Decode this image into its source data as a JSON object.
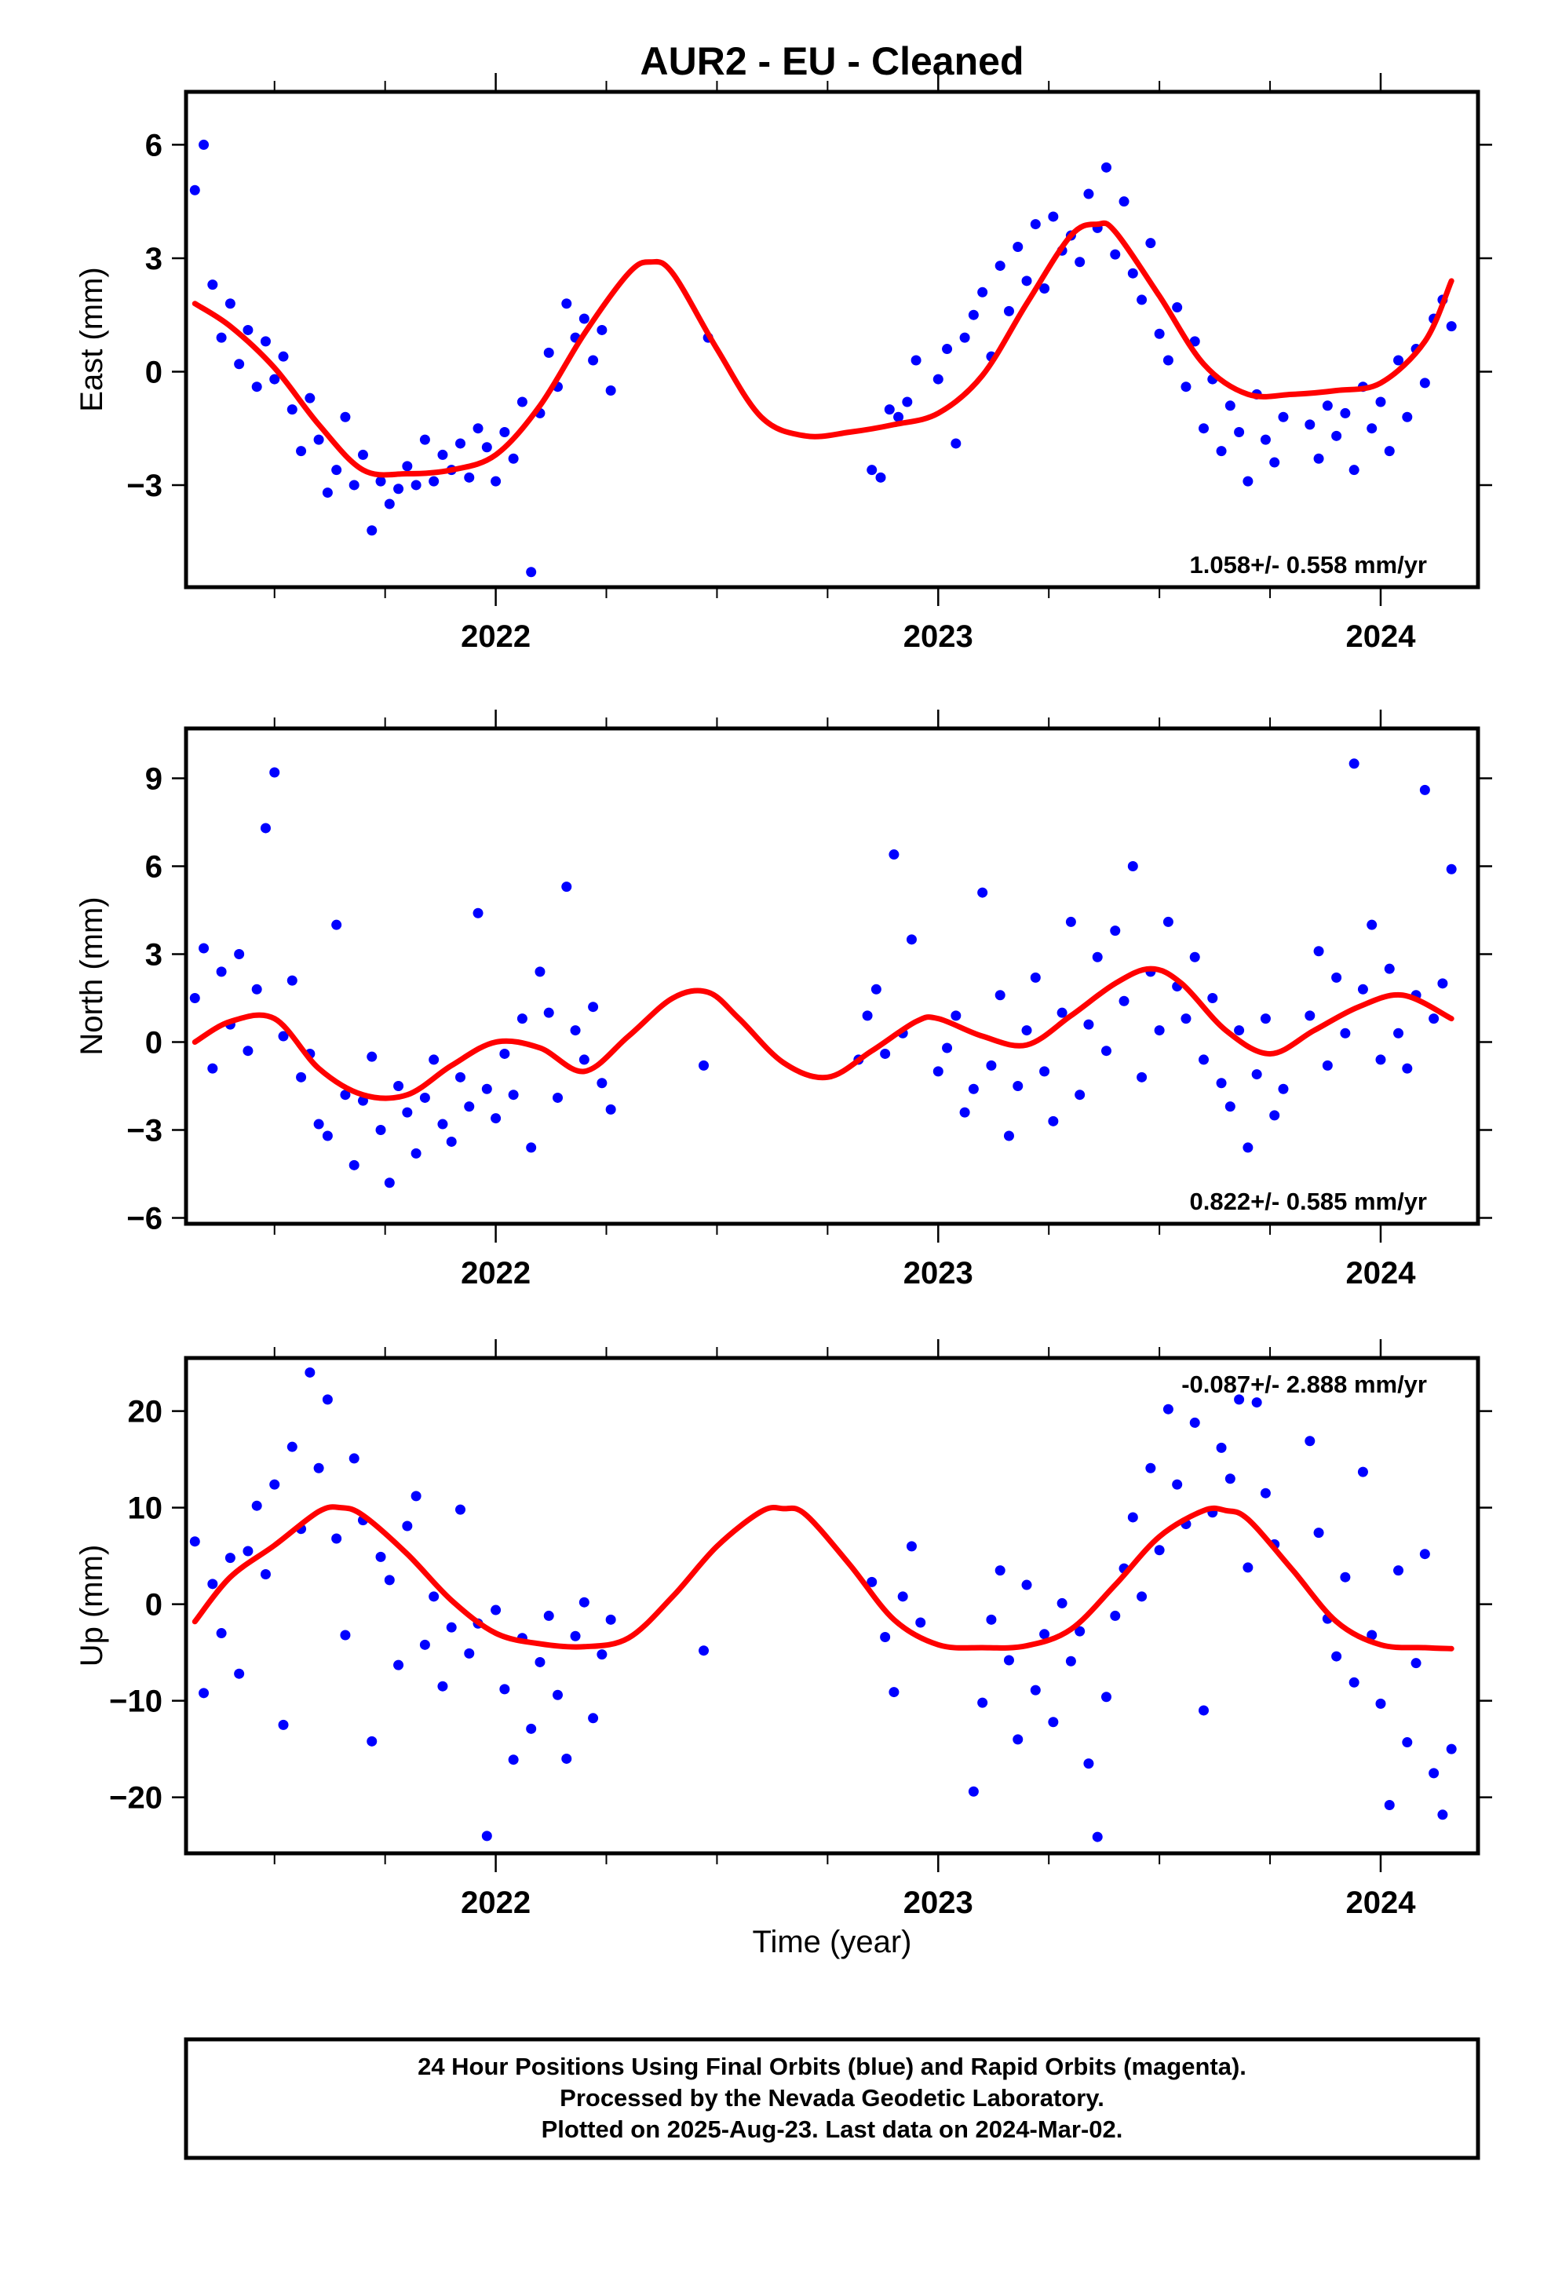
{
  "title": "AUR2  - EU - Cleaned",
  "colors": {
    "points": "#0000ff",
    "fit": "#ff0000",
    "frame": "#000000"
  },
  "xlabel": "Time (year)",
  "footer": {
    "line1": "24 Hour Positions Using Final Orbits (blue) and Rapid Orbits (magenta).",
    "line2": "Processed by the Nevada Geodetic Laboratory.",
    "line3": "Plotted on 2025-Aug-23. Last data on 2024-Mar-02."
  },
  "chart_data": [
    {
      "type": "scatter",
      "component": "east",
      "ylabel": "East (mm)",
      "rate_label": "1.058+/- 0.558 mm/yr",
      "rate_position": "bottom-right",
      "xlim": [
        2021.3,
        2024.22
      ],
      "ylim": [
        -5.7,
        7.4
      ],
      "xticks": [
        2022,
        2023,
        2024
      ],
      "xtick_labels": [
        "2022",
        "2023",
        "2024"
      ],
      "yticks": [
        -3,
        0,
        3,
        6
      ],
      "ytick_labels": [
        "−3",
        "0",
        "3",
        "6"
      ],
      "grid": false,
      "series": [
        {
          "kind": "points",
          "x": [
            2021.32,
            2021.34,
            2021.36,
            2021.38,
            2021.4,
            2021.42,
            2021.44,
            2021.46,
            2021.48,
            2021.5,
            2021.52,
            2021.54,
            2021.56,
            2021.58,
            2021.6,
            2021.62,
            2021.64,
            2021.66,
            2021.68,
            2021.7,
            2021.72,
            2021.74,
            2021.76,
            2021.78,
            2021.8,
            2021.82,
            2021.84,
            2021.86,
            2021.88,
            2021.9,
            2021.92,
            2021.94,
            2021.96,
            2021.98,
            2022.0,
            2022.02,
            2022.04,
            2022.06,
            2022.08,
            2022.1,
            2022.12,
            2022.14,
            2022.16,
            2022.18,
            2022.2,
            2022.22,
            2022.24,
            2022.26,
            2022.48,
            2022.85,
            2022.87,
            2022.89,
            2022.91,
            2022.93,
            2022.95,
            2023.0,
            2023.02,
            2023.04,
            2023.06,
            2023.08,
            2023.1,
            2023.12,
            2023.14,
            2023.16,
            2023.18,
            2023.2,
            2023.22,
            2023.24,
            2023.26,
            2023.28,
            2023.3,
            2023.32,
            2023.34,
            2023.36,
            2023.38,
            2023.4,
            2023.42,
            2023.44,
            2023.46,
            2023.48,
            2023.5,
            2023.52,
            2023.54,
            2023.56,
            2023.58,
            2023.6,
            2023.62,
            2023.64,
            2023.66,
            2023.68,
            2023.7,
            2023.72,
            2023.74,
            2023.76,
            2023.78,
            2023.84,
            2023.86,
            2023.88,
            2023.9,
            2023.92,
            2023.94,
            2023.96,
            2023.98,
            2024.0,
            2024.02,
            2024.04,
            2024.06,
            2024.08,
            2024.1,
            2024.12,
            2024.14,
            2024.16
          ],
          "y": [
            4.8,
            6.0,
            2.3,
            0.9,
            1.8,
            0.2,
            1.1,
            -0.4,
            0.8,
            -0.2,
            0.4,
            -1.0,
            -2.1,
            -0.7,
            -1.8,
            -3.2,
            -2.6,
            -1.2,
            -3.0,
            -2.2,
            -4.2,
            -2.9,
            -3.5,
            -3.1,
            -2.5,
            -3.0,
            -1.8,
            -2.9,
            -2.2,
            -2.6,
            -1.9,
            -2.8,
            -1.5,
            -2.0,
            -2.9,
            -1.6,
            -2.3,
            -0.8,
            -5.3,
            -1.1,
            0.5,
            -0.4,
            1.8,
            0.9,
            1.4,
            0.3,
            1.1,
            -0.5,
            0.9,
            -2.6,
            -2.8,
            -1.0,
            -1.2,
            -0.8,
            0.3,
            -0.2,
            0.6,
            -1.9,
            0.9,
            1.5,
            2.1,
            0.4,
            2.8,
            1.6,
            3.3,
            2.4,
            3.9,
            2.2,
            4.1,
            3.2,
            3.6,
            2.9,
            4.7,
            3.8,
            5.4,
            3.1,
            4.5,
            2.6,
            1.9,
            3.4,
            1.0,
            0.3,
            1.7,
            -0.4,
            0.8,
            -1.5,
            -0.2,
            -2.1,
            -0.9,
            -1.6,
            -2.9,
            -0.6,
            -1.8,
            -2.4,
            -1.2,
            -1.4,
            -2.3,
            -0.9,
            -1.7,
            -1.1,
            -2.6,
            -0.4,
            -1.5,
            -0.8,
            -2.1,
            0.3,
            -1.2,
            0.6,
            -0.3,
            1.4,
            1.9,
            1.2
          ]
        },
        {
          "kind": "fit",
          "x": [
            2021.32,
            2021.4,
            2021.5,
            2021.6,
            2021.7,
            2021.8,
            2021.9,
            2022.0,
            2022.1,
            2022.2,
            2022.3,
            2022.35,
            2022.4,
            2022.5,
            2022.6,
            2022.7,
            2022.8,
            2022.9,
            2023.0,
            2023.1,
            2023.2,
            2023.3,
            2023.36,
            2023.4,
            2023.5,
            2023.6,
            2023.7,
            2023.8,
            2023.9,
            2024.0,
            2024.1,
            2024.16
          ],
          "y": [
            1.8,
            1.2,
            0.1,
            -1.4,
            -2.6,
            -2.7,
            -2.6,
            -2.2,
            -0.9,
            1.0,
            2.6,
            2.9,
            2.6,
            0.6,
            -1.2,
            -1.7,
            -1.6,
            -1.4,
            -1.1,
            -0.1,
            1.8,
            3.6,
            3.9,
            3.7,
            2.0,
            0.2,
            -0.6,
            -0.6,
            -0.5,
            -0.3,
            0.8,
            2.4
          ]
        }
      ]
    },
    {
      "type": "scatter",
      "component": "north",
      "ylabel": "North (mm)",
      "rate_label": "0.822+/- 0.585 mm/yr",
      "rate_position": "bottom-right",
      "xlim": [
        2021.3,
        2024.22
      ],
      "ylim": [
        -6.2,
        10.7
      ],
      "xticks": [
        2022,
        2023,
        2024
      ],
      "xtick_labels": [
        "2022",
        "2023",
        "2024"
      ],
      "yticks": [
        -6,
        -3,
        0,
        3,
        6,
        9
      ],
      "ytick_labels": [
        "−6",
        "−3",
        "0",
        "3",
        "6",
        "9"
      ],
      "grid": false,
      "series": [
        {
          "kind": "points",
          "x": [
            2021.32,
            2021.34,
            2021.36,
            2021.38,
            2021.4,
            2021.42,
            2021.44,
            2021.46,
            2021.48,
            2021.5,
            2021.52,
            2021.54,
            2021.56,
            2021.58,
            2021.6,
            2021.62,
            2021.64,
            2021.66,
            2021.68,
            2021.7,
            2021.72,
            2021.74,
            2021.76,
            2021.78,
            2021.8,
            2021.82,
            2021.84,
            2021.86,
            2021.88,
            2021.9,
            2021.92,
            2021.94,
            2021.96,
            2021.98,
            2022.0,
            2022.02,
            2022.04,
            2022.06,
            2022.08,
            2022.1,
            2022.12,
            2022.14,
            2022.16,
            2022.18,
            2022.2,
            2022.22,
            2022.24,
            2022.26,
            2022.47,
            2022.82,
            2022.84,
            2022.86,
            2022.88,
            2022.9,
            2022.92,
            2022.94,
            2023.0,
            2023.02,
            2023.04,
            2023.06,
            2023.08,
            2023.1,
            2023.12,
            2023.14,
            2023.16,
            2023.18,
            2023.2,
            2023.22,
            2023.24,
            2023.26,
            2023.28,
            2023.3,
            2023.32,
            2023.34,
            2023.36,
            2023.38,
            2023.4,
            2023.42,
            2023.44,
            2023.46,
            2023.48,
            2023.5,
            2023.52,
            2023.54,
            2023.56,
            2023.58,
            2023.6,
            2023.62,
            2023.64,
            2023.66,
            2023.68,
            2023.7,
            2023.72,
            2023.74,
            2023.76,
            2023.78,
            2023.84,
            2023.86,
            2023.88,
            2023.9,
            2023.92,
            2023.94,
            2023.96,
            2023.98,
            2024.0,
            2024.02,
            2024.04,
            2024.06,
            2024.08,
            2024.1,
            2024.12,
            2024.14,
            2024.16
          ],
          "y": [
            1.5,
            3.2,
            -0.9,
            2.4,
            0.6,
            3.0,
            -0.3,
            1.8,
            7.3,
            9.2,
            0.2,
            2.1,
            -1.2,
            -0.4,
            -2.8,
            -3.2,
            4.0,
            -1.8,
            -4.2,
            -2.0,
            -0.5,
            -3.0,
            -4.8,
            -1.5,
            -2.4,
            -3.8,
            -1.9,
            -0.6,
            -2.8,
            -3.4,
            -1.2,
            -2.2,
            4.4,
            -1.6,
            -2.6,
            -0.4,
            -1.8,
            0.8,
            -3.6,
            2.4,
            1.0,
            -1.9,
            5.3,
            0.4,
            -0.6,
            1.2,
            -1.4,
            -2.3,
            -0.8,
            -0.6,
            0.9,
            1.8,
            -0.4,
            6.4,
            0.3,
            3.5,
            -1.0,
            -0.2,
            0.9,
            -2.4,
            -1.6,
            5.1,
            -0.8,
            1.6,
            -3.2,
            -1.5,
            0.4,
            2.2,
            -1.0,
            -2.7,
            1.0,
            4.1,
            -1.8,
            0.6,
            2.9,
            -0.3,
            3.8,
            1.4,
            6.0,
            -1.2,
            2.4,
            0.4,
            4.1,
            1.9,
            0.8,
            2.9,
            -0.6,
            1.5,
            -1.4,
            -2.2,
            0.4,
            -3.6,
            -1.1,
            0.8,
            -2.5,
            -1.6,
            0.9,
            3.1,
            -0.8,
            2.2,
            0.3,
            9.5,
            1.8,
            4.0,
            -0.6,
            2.5,
            0.3,
            -0.9,
            1.6,
            8.6,
            0.8,
            2.0,
            5.9
          ]
        },
        {
          "kind": "fit",
          "x": [
            2021.32,
            2021.4,
            2021.5,
            2021.6,
            2021.7,
            2021.8,
            2021.9,
            2022.0,
            2022.1,
            2022.2,
            2022.3,
            2022.4,
            2022.48,
            2022.55,
            2022.65,
            2022.75,
            2022.85,
            2022.95,
            2023.0,
            2023.1,
            2023.2,
            2023.3,
            2023.4,
            2023.48,
            2023.55,
            2023.65,
            2023.75,
            2023.85,
            2023.95,
            2024.05,
            2024.16
          ],
          "y": [
            0.0,
            0.7,
            0.8,
            -0.9,
            -1.8,
            -1.8,
            -0.8,
            0.0,
            -0.2,
            -1.0,
            0.2,
            1.5,
            1.7,
            0.8,
            -0.7,
            -1.2,
            -0.3,
            0.7,
            0.8,
            0.2,
            -0.1,
            0.9,
            2.0,
            2.5,
            2.0,
            0.4,
            -0.4,
            0.4,
            1.2,
            1.6,
            0.8
          ]
        }
      ]
    },
    {
      "type": "scatter",
      "component": "up",
      "ylabel": "Up (mm)",
      "rate_label": "-0.087+/- 2.888 mm/yr",
      "rate_position": "top-right",
      "xlim": [
        2021.3,
        2024.22
      ],
      "ylim": [
        -25.8,
        25.5
      ],
      "xticks": [
        2022,
        2023,
        2024
      ],
      "xtick_labels": [
        "2022",
        "2023",
        "2024"
      ],
      "yticks": [
        -20,
        -10,
        0,
        10,
        20
      ],
      "ytick_labels": [
        "−20",
        "−10",
        "0",
        "10",
        "20"
      ],
      "grid": false,
      "series": [
        {
          "kind": "points",
          "x": [
            2021.32,
            2021.34,
            2021.36,
            2021.38,
            2021.4,
            2021.42,
            2021.44,
            2021.46,
            2021.48,
            2021.5,
            2021.52,
            2021.54,
            2021.56,
            2021.58,
            2021.6,
            2021.62,
            2021.64,
            2021.66,
            2021.68,
            2021.7,
            2021.72,
            2021.74,
            2021.76,
            2021.78,
            2021.8,
            2021.82,
            2021.84,
            2021.86,
            2021.88,
            2021.9,
            2021.92,
            2021.94,
            2021.96,
            2021.98,
            2022.0,
            2022.02,
            2022.04,
            2022.06,
            2022.08,
            2022.1,
            2022.12,
            2022.14,
            2022.16,
            2022.18,
            2022.2,
            2022.22,
            2022.24,
            2022.26,
            2022.47,
            2022.85,
            2022.88,
            2022.9,
            2022.92,
            2022.94,
            2022.96,
            2023.08,
            2023.1,
            2023.12,
            2023.14,
            2023.16,
            2023.18,
            2023.2,
            2023.22,
            2023.24,
            2023.26,
            2023.28,
            2023.3,
            2023.32,
            2023.34,
            2023.36,
            2023.38,
            2023.4,
            2023.42,
            2023.44,
            2023.46,
            2023.48,
            2023.5,
            2023.52,
            2023.54,
            2023.56,
            2023.58,
            2023.6,
            2023.62,
            2023.64,
            2023.66,
            2023.68,
            2023.7,
            2023.72,
            2023.74,
            2023.76,
            2023.84,
            2023.86,
            2023.88,
            2023.9,
            2023.92,
            2023.94,
            2023.96,
            2023.98,
            2024.0,
            2024.02,
            2024.04,
            2024.06,
            2024.08,
            2024.1,
            2024.12,
            2024.14,
            2024.16
          ],
          "y": [
            6.5,
            -9.2,
            2.1,
            -3.0,
            4.8,
            -7.2,
            5.5,
            10.2,
            3.1,
            12.4,
            -12.5,
            16.3,
            7.8,
            24.0,
            14.1,
            21.2,
            6.8,
            -3.2,
            15.1,
            8.7,
            -14.2,
            4.9,
            2.5,
            -6.3,
            8.1,
            11.2,
            -4.2,
            0.8,
            -8.5,
            -2.4,
            9.8,
            -5.1,
            -2.0,
            -24.0,
            -0.6,
            -8.8,
            -16.1,
            -3.5,
            -12.9,
            -6.0,
            -1.2,
            -9.4,
            -16.0,
            -3.3,
            0.2,
            -11.8,
            -5.2,
            -1.6,
            -4.8,
            2.3,
            -3.4,
            -9.1,
            0.8,
            6.0,
            -1.9,
            -19.4,
            -10.2,
            -1.6,
            3.5,
            -5.8,
            -14.0,
            2.0,
            -8.9,
            -3.1,
            -12.2,
            0.1,
            -5.9,
            -2.8,
            -16.5,
            -24.1,
            -9.6,
            -1.2,
            3.7,
            9.0,
            0.8,
            14.1,
            5.6,
            20.2,
            12.4,
            8.3,
            18.8,
            -11.0,
            9.5,
            16.2,
            13.0,
            21.2,
            3.8,
            20.9,
            11.5,
            6.2,
            16.9,
            7.4,
            -1.5,
            -5.4,
            2.8,
            -8.1,
            13.7,
            -3.2,
            -10.3,
            -20.8,
            3.5,
            -14.3,
            -6.1,
            5.2,
            -17.5,
            -21.8,
            -15.0
          ]
        },
        {
          "kind": "fit",
          "x": [
            2021.32,
            2021.4,
            2021.5,
            2021.6,
            2021.65,
            2021.7,
            2021.8,
            2021.9,
            2022.0,
            2022.1,
            2022.2,
            2022.3,
            2022.4,
            2022.5,
            2022.6,
            2022.65,
            2022.7,
            2022.8,
            2022.9,
            2023.0,
            2023.1,
            2023.2,
            2023.3,
            2023.4,
            2023.5,
            2023.6,
            2023.65,
            2023.7,
            2023.8,
            2023.9,
            2024.0,
            2024.1,
            2024.16
          ],
          "y": [
            -1.8,
            2.8,
            6.1,
            9.6,
            10.0,
            9.2,
            5.2,
            0.4,
            -3.0,
            -4.1,
            -4.4,
            -3.5,
            0.8,
            6.0,
            9.6,
            9.9,
            9.3,
            4.1,
            -1.6,
            -4.2,
            -4.5,
            -4.3,
            -2.6,
            2.0,
            7.0,
            9.7,
            9.7,
            8.8,
            3.6,
            -1.8,
            -4.2,
            -4.5,
            -4.6
          ]
        }
      ]
    }
  ]
}
